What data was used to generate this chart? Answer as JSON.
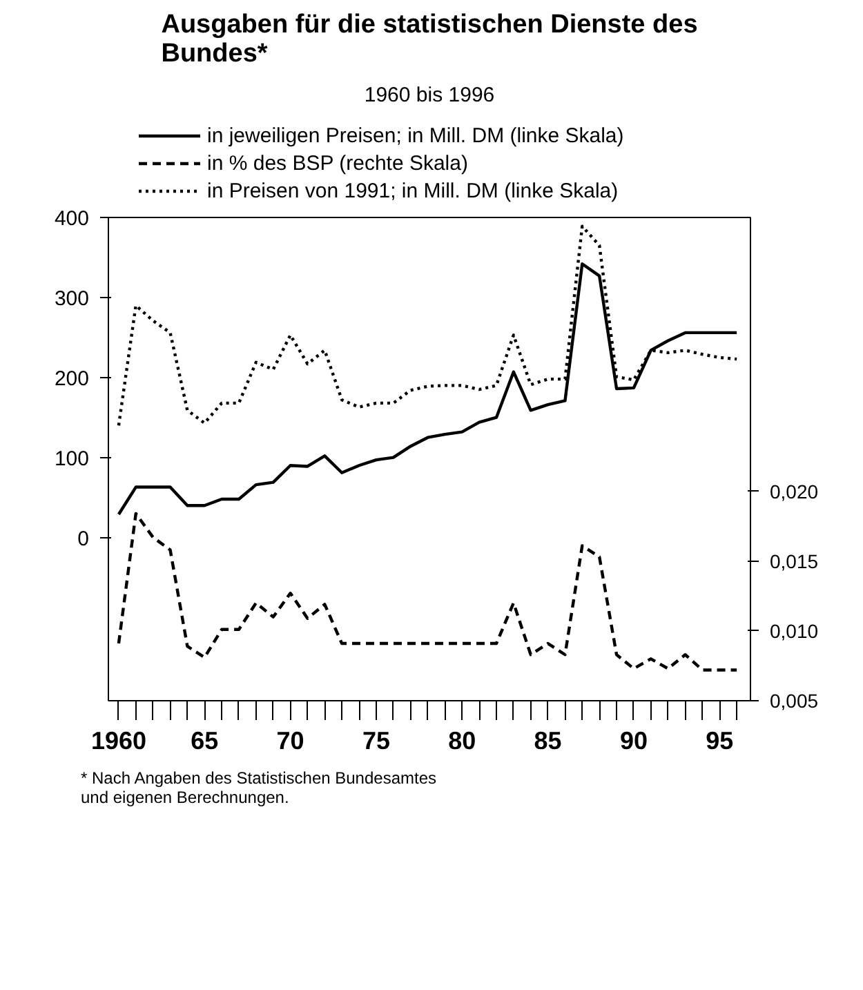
{
  "chart_data": {
    "type": "line",
    "title": "Ausgaben für die statistischen Dienste des Bundes*",
    "subtitle": "1960 bis 1996",
    "x": [
      1960,
      1961,
      1962,
      1963,
      1964,
      1965,
      1966,
      1967,
      1968,
      1969,
      1970,
      1971,
      1972,
      1973,
      1974,
      1975,
      1976,
      1977,
      1978,
      1979,
      1980,
      1981,
      1982,
      1983,
      1984,
      1985,
      1986,
      1987,
      1988,
      1989,
      1990,
      1991,
      1992,
      1993,
      1994,
      1995,
      1996
    ],
    "series": [
      {
        "name": "in jeweiligen Preisen; in Mill. DM (linke Skala)",
        "color": "#000000",
        "line_style": "solid",
        "values": [
          29,
          63,
          63,
          63,
          40,
          40,
          48,
          48,
          66,
          69,
          90,
          89,
          102,
          81,
          90,
          97,
          100,
          114,
          125,
          129,
          132,
          144,
          150,
          207,
          159,
          166,
          171,
          342,
          327,
          186,
          187,
          234,
          246,
          256,
          256,
          256,
          256
        ]
      },
      {
        "name": "in % des BSP (rechte Skala)",
        "color": "#000000",
        "line_style": "dashed",
        "axis": "y2",
        "values": [
          0.0091,
          0.0184,
          0.0167,
          0.0158,
          0.0089,
          0.0081,
          0.0101,
          0.0101,
          0.012,
          0.011,
          0.0127,
          0.0109,
          0.0119,
          0.0091,
          0.0091,
          0.0091,
          0.0091,
          0.0091,
          0.0091,
          0.0091,
          0.0091,
          0.0091,
          0.0091,
          0.012,
          0.0083,
          0.0091,
          0.0083,
          0.0161,
          0.0153,
          0.0083,
          0.0073,
          0.008,
          0.0073,
          0.0083,
          0.0072,
          0.0072,
          0.0072
        ]
      },
      {
        "name": "in Preisen von 1991; in Mill. DM (linke Skala)",
        "color": "#000000",
        "line_style": "dotted",
        "values": [
          140,
          290,
          271,
          256,
          159,
          143,
          168,
          168,
          219,
          210,
          253,
          217,
          234,
          172,
          163,
          168,
          168,
          184,
          189,
          190,
          190,
          185,
          190,
          253,
          191,
          198,
          198,
          389,
          365,
          201,
          197,
          234,
          231,
          234,
          229,
          225,
          223
        ]
      }
    ],
    "xlim": [
      1959.4,
      1996.8
    ],
    "xticks": [
      {
        "value": 1960,
        "label": "1960"
      },
      {
        "value": 1961,
        "label": null
      },
      {
        "value": 1962,
        "label": null
      },
      {
        "value": 1963,
        "label": null
      },
      {
        "value": 1964,
        "label": null
      },
      {
        "value": 1965,
        "label": "65"
      },
      {
        "value": 1966,
        "label": null
      },
      {
        "value": 1967,
        "label": null
      },
      {
        "value": 1968,
        "label": null
      },
      {
        "value": 1969,
        "label": null
      },
      {
        "value": 1970,
        "label": "70"
      },
      {
        "value": 1971,
        "label": null
      },
      {
        "value": 1972,
        "label": null
      },
      {
        "value": 1973,
        "label": null
      },
      {
        "value": 1974,
        "label": null
      },
      {
        "value": 1975,
        "label": "75"
      },
      {
        "value": 1976,
        "label": null
      },
      {
        "value": 1977,
        "label": null
      },
      {
        "value": 1978,
        "label": null
      },
      {
        "value": 1979,
        "label": null
      },
      {
        "value": 1980,
        "label": "80"
      },
      {
        "value": 1981,
        "label": null
      },
      {
        "value": 1982,
        "label": null
      },
      {
        "value": 1983,
        "label": null
      },
      {
        "value": 1984,
        "label": null
      },
      {
        "value": 1985,
        "label": "85"
      },
      {
        "value": 1986,
        "label": null
      },
      {
        "value": 1987,
        "label": null
      },
      {
        "value": 1988,
        "label": null
      },
      {
        "value": 1989,
        "label": null
      },
      {
        "value": 1990,
        "label": "90"
      },
      {
        "value": 1991,
        "label": null
      },
      {
        "value": 1992,
        "label": null
      },
      {
        "value": 1993,
        "label": null
      },
      {
        "value": 1994,
        "label": null
      },
      {
        "value": 1995,
        "label": "95"
      },
      {
        "value": 1996,
        "label": null
      }
    ],
    "ylim": [
      -204,
      400
    ],
    "yticks": [
      0,
      100,
      200,
      300,
      400
    ],
    "y2lim": [
      0.005,
      0.0396
    ],
    "y2ticks": [
      {
        "value": 0.005,
        "label": "0,005"
      },
      {
        "value": 0.01,
        "label": "0,010"
      },
      {
        "value": 0.015,
        "label": "0,015"
      },
      {
        "value": 0.02,
        "label": "0,020"
      }
    ],
    "grid": false,
    "legend": "top",
    "marker": "none",
    "annotations": [
      "* Nach Angaben des Statistischen Bundesamtes\nund eigenen Berechnungen."
    ]
  }
}
